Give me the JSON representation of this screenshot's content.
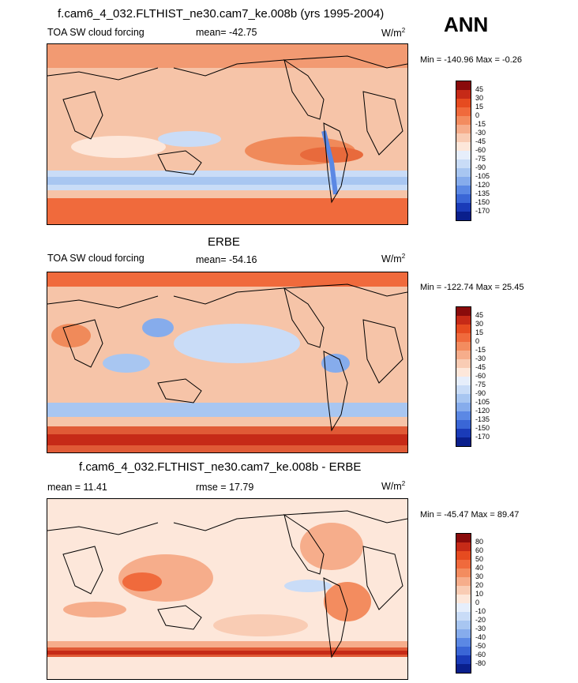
{
  "season": "ANN",
  "colors": {
    "map_bg": "#f6c4a8",
    "cloud_blue": "#a9c8f0",
    "deep_red": "#e05a36",
    "coast": "#000000"
  },
  "panels": [
    {
      "title": "f.cam6_4_032.FLTHIST_ne30.cam7_ke.008b (yrs 1995-2004)",
      "left_label": "TOA SW cloud forcing",
      "stat_label": "mean= -42.75",
      "units": "W/m",
      "units_sup": "2",
      "minmax": "Min = -140.96 Max =  -0.26",
      "colorbar": {
        "ticks": [
          "45",
          "30",
          "15",
          "0",
          "-15",
          "-30",
          "-45",
          "-60",
          "-75",
          "-90",
          "-105",
          "-120",
          "-135",
          "-150",
          "-170"
        ],
        "colors": [
          "#8a0b0b",
          "#c62a17",
          "#e64b20",
          "#f06a3c",
          "#f38c5f",
          "#f6ad8b",
          "#f9ccb4",
          "#fde7da",
          "#e6eefb",
          "#c9dcf7",
          "#a8c6f1",
          "#86acec",
          "#5b88e4",
          "#3a66d6",
          "#1a3bb8",
          "#0a1f8c"
        ]
      }
    },
    {
      "title": "ERBE",
      "left_label": "TOA SW cloud forcing",
      "stat_label": "mean= -54.16",
      "units": "W/m",
      "units_sup": "2",
      "minmax": "Min = -122.74 Max =  25.45",
      "colorbar": {
        "ticks": [
          "45",
          "30",
          "15",
          "0",
          "-15",
          "-30",
          "-45",
          "-60",
          "-75",
          "-90",
          "-105",
          "-120",
          "-135",
          "-150",
          "-170"
        ],
        "colors": [
          "#8a0b0b",
          "#c62a17",
          "#e64b20",
          "#f06a3c",
          "#f38c5f",
          "#f6ad8b",
          "#f9ccb4",
          "#fde7da",
          "#e6eefb",
          "#c9dcf7",
          "#a8c6f1",
          "#86acec",
          "#5b88e4",
          "#3a66d6",
          "#1a3bb8",
          "#0a1f8c"
        ]
      }
    },
    {
      "title": "f.cam6_4_032.FLTHIST_ne30.cam7_ke.008b - ERBE",
      "left_label": "mean =  11.41",
      "stat_label": "rmse =  17.79",
      "units": "W/m",
      "units_sup": "2",
      "minmax": "Min = -45.47 Max =  89.47",
      "colorbar": {
        "ticks": [
          "80",
          "60",
          "50",
          "40",
          "30",
          "20",
          "10",
          "0",
          "-10",
          "-20",
          "-30",
          "-40",
          "-50",
          "-60",
          "-80"
        ],
        "colors": [
          "#8a0b0b",
          "#c62a17",
          "#e64b20",
          "#f06a3c",
          "#f38c5f",
          "#f6ad8b",
          "#f9ccb4",
          "#fde7da",
          "#e6eefb",
          "#c9dcf7",
          "#a8c6f1",
          "#86acec",
          "#5b88e4",
          "#3a66d6",
          "#1a3bb8",
          "#0a1f8c"
        ]
      }
    }
  ]
}
